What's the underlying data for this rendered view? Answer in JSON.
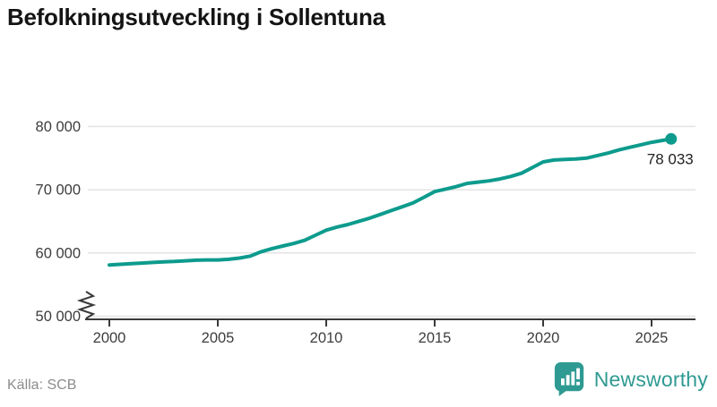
{
  "title": "Befolkningsutveckling i Sollentuna",
  "source": "Källa: SCB",
  "logo": {
    "text": "Newsworthy",
    "icon": "bar-chart-speech-bubble-icon",
    "color": "#2f9a92"
  },
  "colors": {
    "line": "#0d9b8d",
    "grid": "#e3e3e3",
    "axis": "#3a3a3a",
    "tick_label": "#3d3d3d",
    "end_label": "#222222",
    "title": "#141414",
    "source_text": "#8c8c8c"
  },
  "chart_data": {
    "type": "line",
    "title": "Befolkningsutveckling i Sollentuna",
    "xlabel": "",
    "ylabel": "",
    "grid": true,
    "axis_break": true,
    "legend": "none",
    "xlim": [
      2000,
      2026.8
    ],
    "ylim": [
      50000,
      80000
    ],
    "xticks": [
      "2000",
      "2005",
      "2010",
      "2015",
      "2020",
      "2025"
    ],
    "yticks": [
      {
        "value": 50000,
        "label": "50 000"
      },
      {
        "value": 60000,
        "label": "60 000"
      },
      {
        "value": 70000,
        "label": "70 000"
      },
      {
        "value": 80000,
        "label": "80 000"
      }
    ],
    "end_label": "78 033",
    "end_value": 78033,
    "series": [
      {
        "name": "Befolkning",
        "points": [
          [
            2000.0,
            58100
          ],
          [
            2000.5,
            58200
          ],
          [
            2001.0,
            58300
          ],
          [
            2001.5,
            58400
          ],
          [
            2002.0,
            58500
          ],
          [
            2002.5,
            58600
          ],
          [
            2003.0,
            58650
          ],
          [
            2003.5,
            58750
          ],
          [
            2004.0,
            58850
          ],
          [
            2004.5,
            58900
          ],
          [
            2005.0,
            58900
          ],
          [
            2005.5,
            59000
          ],
          [
            2006.0,
            59200
          ],
          [
            2006.5,
            59500
          ],
          [
            2007.0,
            60200
          ],
          [
            2007.5,
            60700
          ],
          [
            2008.0,
            61100
          ],
          [
            2008.5,
            61500
          ],
          [
            2009.0,
            62000
          ],
          [
            2009.5,
            62800
          ],
          [
            2010.0,
            63600
          ],
          [
            2010.5,
            64100
          ],
          [
            2011.0,
            64500
          ],
          [
            2011.5,
            65000
          ],
          [
            2012.0,
            65500
          ],
          [
            2012.5,
            66100
          ],
          [
            2013.0,
            66700
          ],
          [
            2013.5,
            67300
          ],
          [
            2014.0,
            67900
          ],
          [
            2014.5,
            68800
          ],
          [
            2015.0,
            69700
          ],
          [
            2015.5,
            70100
          ],
          [
            2016.0,
            70500
          ],
          [
            2016.5,
            71000
          ],
          [
            2017.0,
            71200
          ],
          [
            2017.5,
            71400
          ],
          [
            2018.0,
            71700
          ],
          [
            2018.5,
            72100
          ],
          [
            2019.0,
            72600
          ],
          [
            2019.5,
            73500
          ],
          [
            2020.0,
            74400
          ],
          [
            2020.5,
            74700
          ],
          [
            2021.0,
            74800
          ],
          [
            2021.5,
            74850
          ],
          [
            2022.0,
            75000
          ],
          [
            2022.5,
            75400
          ],
          [
            2023.0,
            75800
          ],
          [
            2023.5,
            76300
          ],
          [
            2024.0,
            76700
          ],
          [
            2024.5,
            77100
          ],
          [
            2025.0,
            77500
          ],
          [
            2025.5,
            77800
          ],
          [
            2025.9,
            78033
          ]
        ]
      }
    ]
  }
}
